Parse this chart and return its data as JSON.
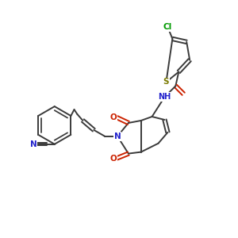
{
  "background_color": "#ffffff",
  "figure_size": [
    3.0,
    3.0
  ],
  "dpi": 100,
  "bond_color": "#3a3a3a",
  "atom_colors": {
    "N": "#2222cc",
    "O": "#cc2200",
    "S": "#7a7a00",
    "Cl": "#009900",
    "bg": "#ffffff"
  },
  "lw": 1.4
}
